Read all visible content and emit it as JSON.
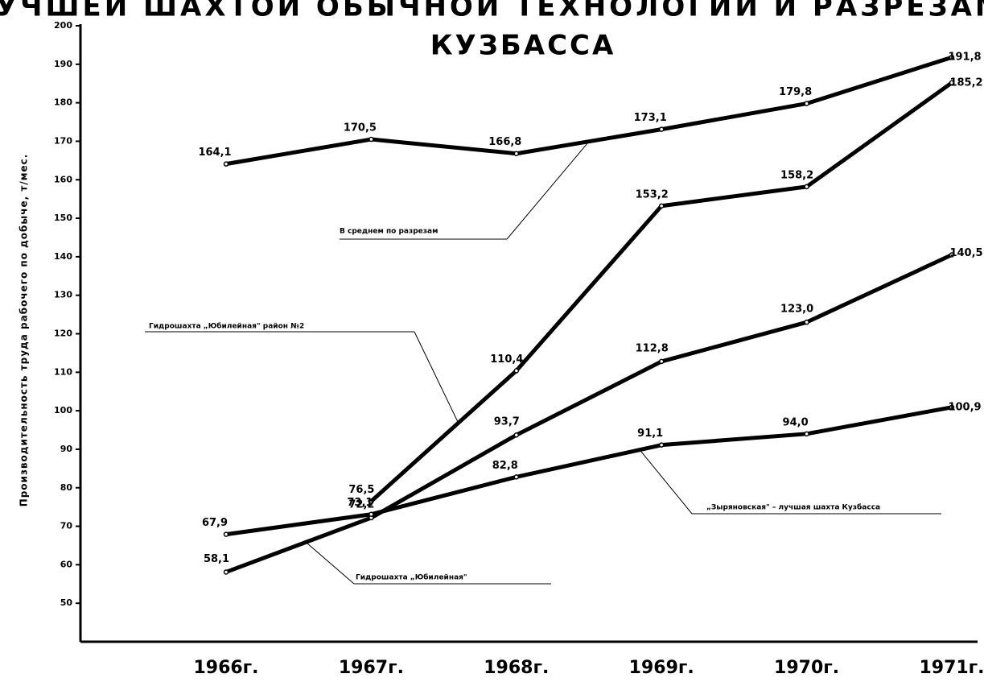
{
  "chart_data": {
    "type": "line",
    "title": "С ЛУЧШЕЙ ШАХТОЙ ОБЫЧНОЙ ТЕХНОЛОГИИ И РАЗРЕЗАМИ",
    "subtitle": "КУЗБАССА",
    "y_label": "Производительность труда рабочего по добыче, т/мес.",
    "categories": [
      "1966г.",
      "1967г.",
      "1968г.",
      "1969г.",
      "1970г.",
      "1971г."
    ],
    "series": [
      {
        "name": "В среднем по разрезам",
        "color": "#000000",
        "values": [
          164.1,
          170.5,
          166.8,
          173.1,
          179.8,
          191.8
        ],
        "value_labels": [
          "164,1",
          "170,5",
          "166,8",
          "173,1",
          "179,8",
          "191,8"
        ]
      },
      {
        "name": "Гидрошахта „Юбилейная\" район №2",
        "color": "#000000",
        "values": [
          null,
          76.5,
          110.4,
          153.2,
          158.2,
          185.2
        ],
        "value_labels": [
          null,
          "76,5",
          "110,4",
          "153,2",
          "158,2",
          "185,2"
        ]
      },
      {
        "name": "Гидрошахта „Юбилейная\"",
        "color": "#000000",
        "values": [
          58.1,
          72.2,
          93.7,
          112.8,
          123.0,
          140.5
        ],
        "value_labels": [
          "58,1",
          "72,2",
          "93,7",
          "112,8",
          "123,0",
          "140,5"
        ]
      },
      {
        "name": "„Зыряновская\" – лучшая шахта Кузбасса",
        "color": "#000000",
        "values": [
          67.9,
          73.1,
          82.8,
          91.1,
          94.0,
          100.9
        ],
        "value_labels": [
          "67,9",
          "73,1",
          "82,8",
          "91,1",
          "94,0",
          "100,9"
        ]
      }
    ],
    "ylim": [
      40,
      200
    ],
    "yticks": [
      50,
      60,
      70,
      80,
      90,
      100,
      110,
      120,
      130,
      140,
      150,
      160,
      170,
      180,
      190,
      200
    ]
  }
}
